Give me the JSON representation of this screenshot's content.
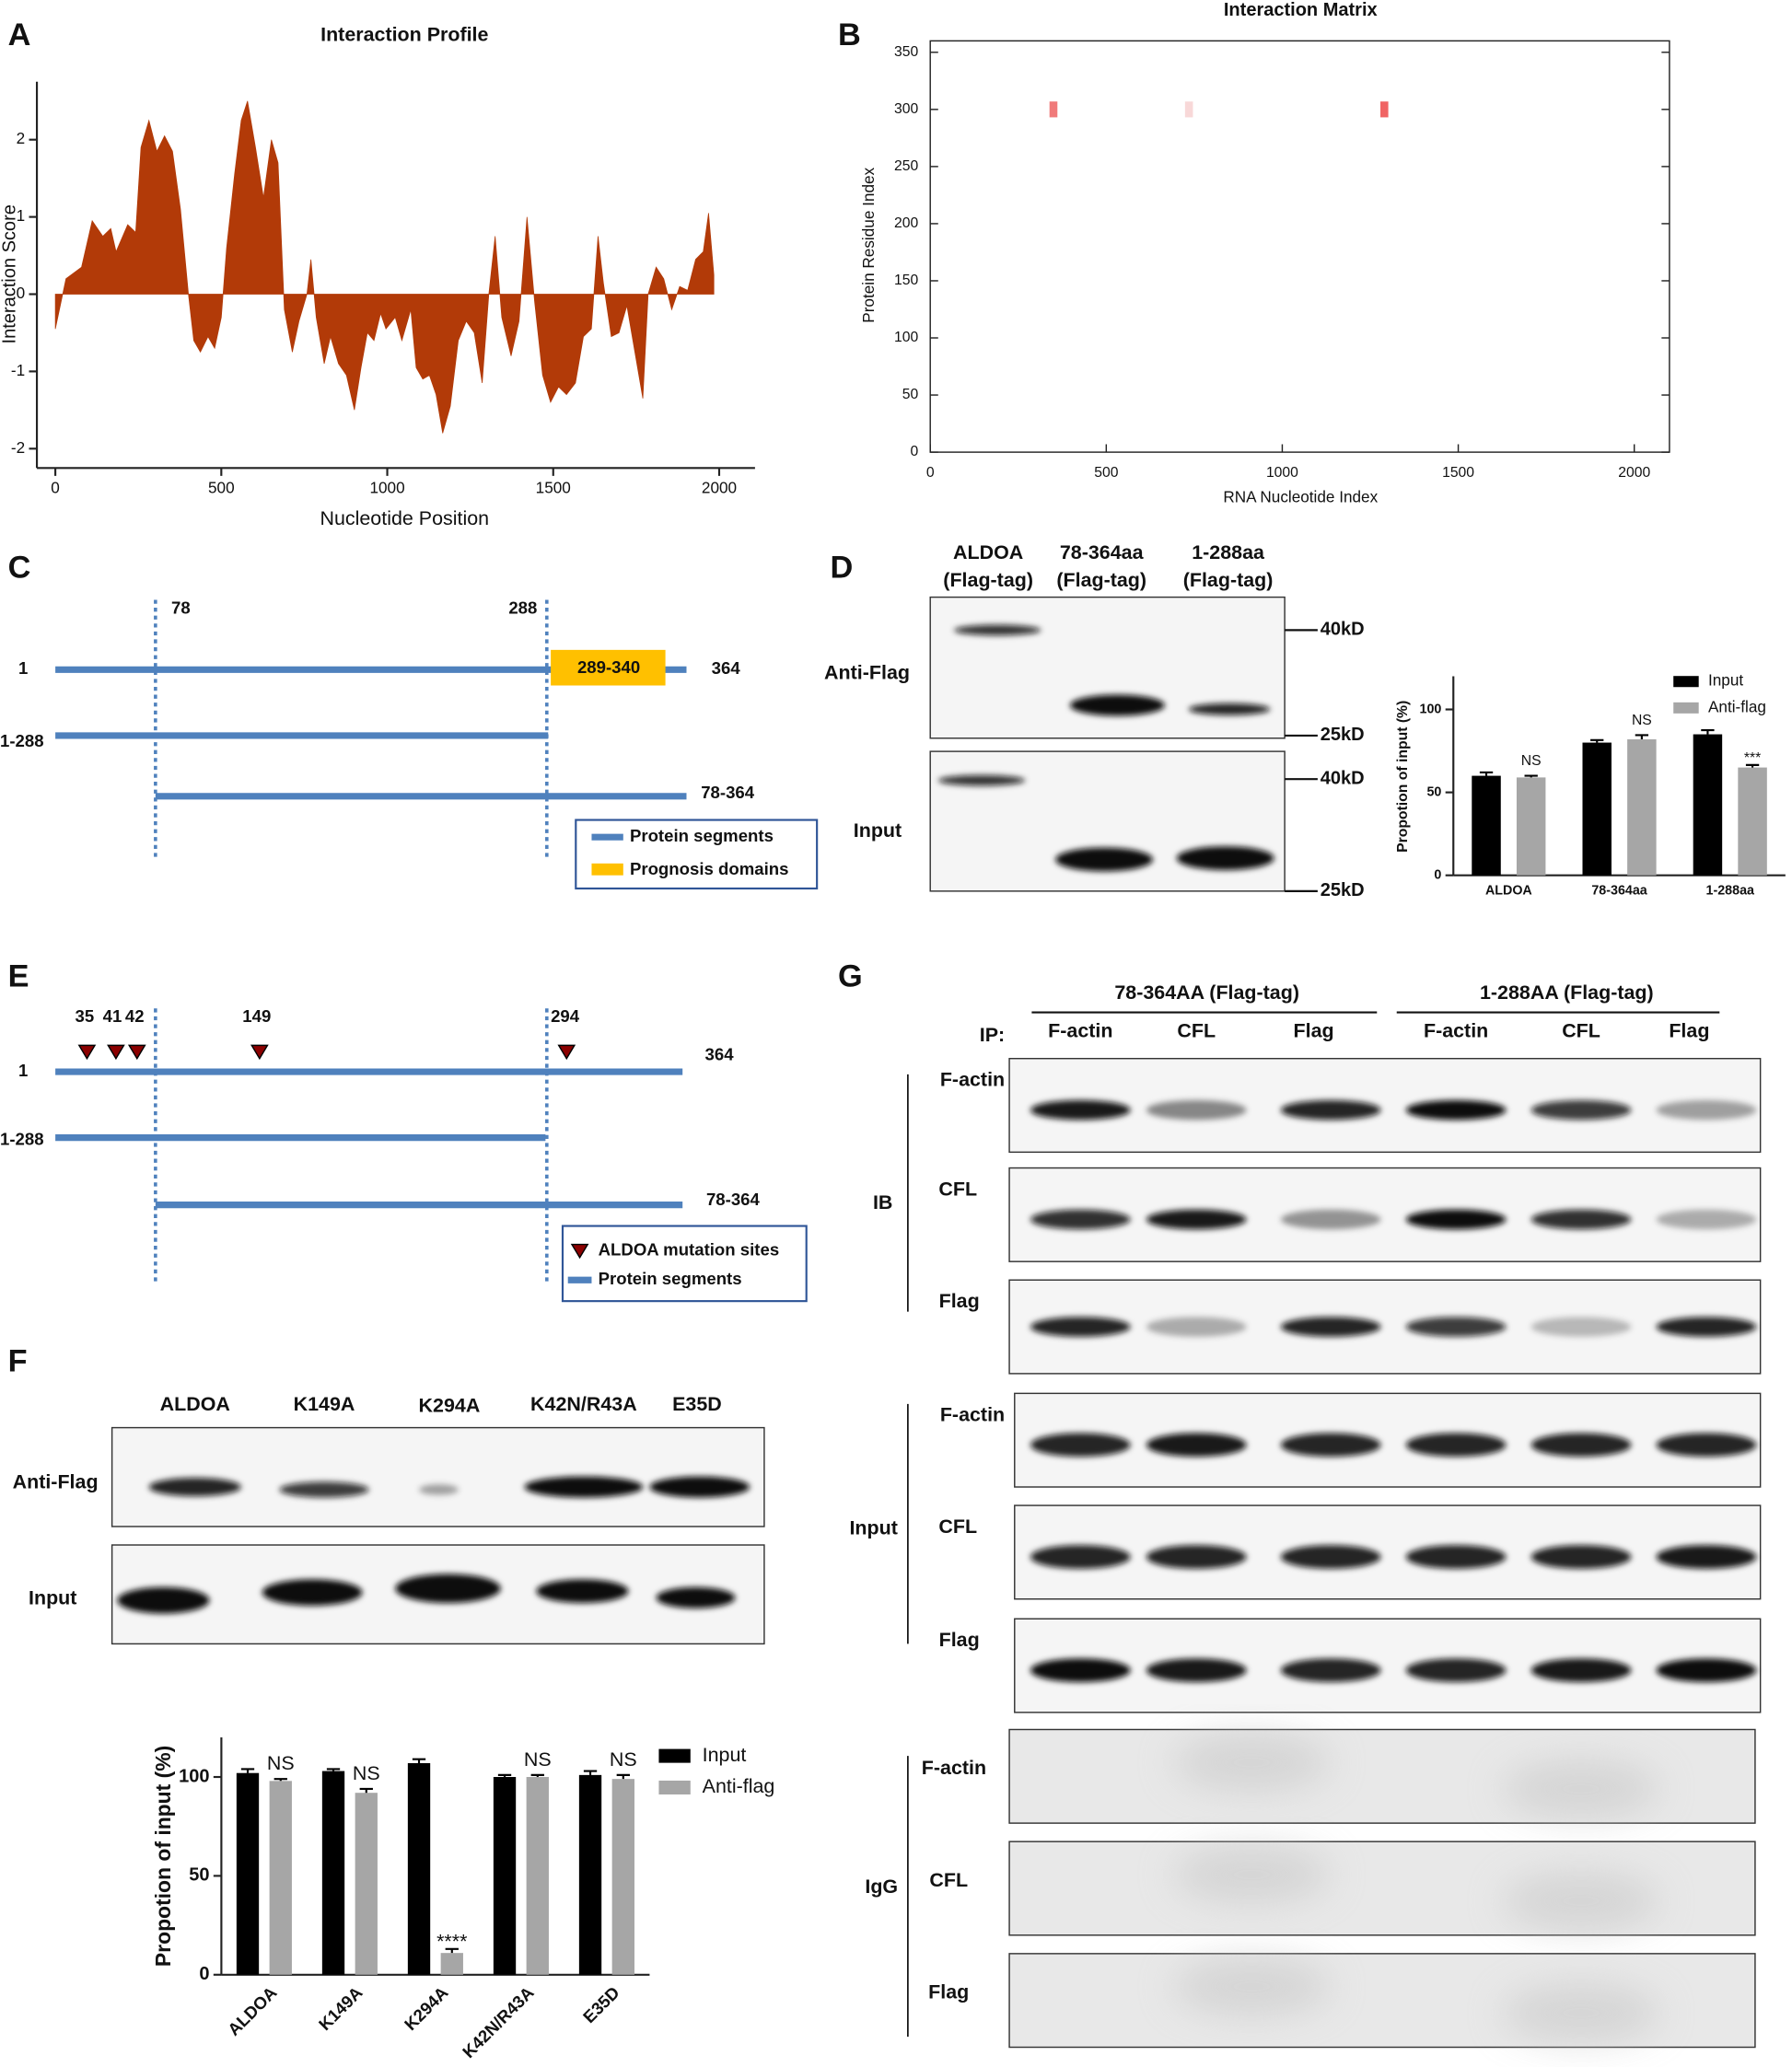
{
  "chart_data": [
    {
      "type": "area",
      "panel_label": "A",
      "title": "Interaction Profile",
      "x_label": "Nucleotide Position",
      "y_label": "Interaction Score",
      "color": "#b23a08",
      "x": [
        0,
        32,
        79,
        111,
        143,
        167,
        183,
        218,
        242,
        258,
        282,
        306,
        329,
        353,
        377,
        401,
        417,
        437,
        460,
        480,
        500,
        516,
        540,
        560,
        579,
        603,
        627,
        651,
        671,
        690,
        714,
        734,
        758,
        770,
        786,
        810,
        829,
        853,
        877,
        901,
        921,
        940,
        960,
        980,
        996,
        1024,
        1044,
        1071,
        1087,
        1107,
        1127,
        1147,
        1167,
        1190,
        1214,
        1238,
        1262,
        1286,
        1306,
        1325,
        1345,
        1373,
        1397,
        1421,
        1444,
        1468,
        1492,
        1516,
        1540,
        1567,
        1591,
        1615,
        1635,
        1651,
        1675,
        1698,
        1722,
        1746,
        1770,
        1786,
        1810,
        1833,
        1857,
        1881,
        1905,
        1929,
        1952,
        1968,
        1984
      ],
      "values": [
        -0.45,
        0.2,
        0.35,
        0.95,
        0.75,
        0.85,
        0.55,
        0.9,
        0.8,
        1.9,
        2.25,
        1.85,
        2.05,
        1.85,
        1.1,
        0,
        -0.6,
        -0.75,
        -0.55,
        -0.7,
        -0.3,
        0.6,
        1.55,
        2.25,
        2.5,
        1.9,
        1.25,
        2,
        1.7,
        -0.2,
        -0.75,
        -0.35,
        0,
        0.45,
        -0.3,
        -0.9,
        -0.55,
        -0.9,
        -1.05,
        -1.5,
        -0.95,
        -0.5,
        -0.6,
        -0.25,
        -0.45,
        -0.3,
        -0.6,
        -0.2,
        -0.95,
        -1.1,
        -1.05,
        -1.3,
        -1.8,
        -1.45,
        -0.6,
        -0.35,
        -0.5,
        -1.15,
        0,
        0.75,
        -0.3,
        -0.8,
        -0.35,
        1,
        -0.1,
        -1.05,
        -1.4,
        -1.2,
        -1.3,
        -1.15,
        -0.55,
        -0.45,
        0.75,
        0.15,
        -0.55,
        -0.5,
        -0.15,
        -0.75,
        -1.35,
        0,
        0.35,
        0.2,
        -0.2,
        0.1,
        0.05,
        0.45,
        0.55,
        1.05,
        0.25
      ],
      "xlim": [
        0,
        2100
      ],
      "xticks": [
        0,
        500,
        1000,
        1500,
        2000
      ],
      "ylim": [
        -2.25,
        2.75
      ],
      "yticks": [
        -2,
        -1,
        0,
        1,
        2
      ]
    },
    {
      "type": "scatter",
      "panel_label": "B",
      "title": "Interaction Matrix",
      "x_label": "RNA Nucleotide Index",
      "y_label": "Protein Residue Index",
      "x": [
        350,
        735,
        1290
      ],
      "values": [
        300,
        300,
        300
      ],
      "colors": [
        "#f07a7a",
        "#f8d8d8",
        "#f06464"
      ],
      "xlim": [
        0,
        2100
      ],
      "xticks": [
        0,
        500,
        1000,
        1500,
        2000
      ],
      "ylim": [
        0,
        360
      ],
      "yticks": [
        0,
        50,
        100,
        150,
        200,
        250,
        300,
        350
      ]
    },
    {
      "type": "bar",
      "y_label": "Propotion of input (%)",
      "categories": [
        "ALDOA",
        "78-364aa",
        "1-288aa"
      ],
      "series": [
        {
          "name": "Input",
          "color": "#000000",
          "values": [
            60,
            80,
            85
          ],
          "errors": [
            2,
            1.5,
            2.5
          ]
        },
        {
          "name": "Anti-flag",
          "color": "#a6a6a6",
          "values": [
            59,
            82,
            65
          ],
          "errors": [
            1,
            2.5,
            1.5
          ]
        }
      ],
      "annotations": [
        "NS",
        "NS",
        "***"
      ],
      "legend": "upper right",
      "ylim": [
        0,
        120
      ],
      "yticks": [
        0,
        50,
        100
      ]
    },
    {
      "type": "bar",
      "y_label": "Propotion of input (%)",
      "categories": [
        "ALDOA",
        "K149A",
        "K294A",
        "K42N/R43A",
        "E35D"
      ],
      "series": [
        {
          "name": "Input",
          "color": "#000000",
          "values": [
            102,
            103,
            107,
            100,
            101
          ],
          "errors": [
            2,
            1,
            2,
            1,
            2
          ]
        },
        {
          "name": "Anti-flag",
          "color": "#a6a6a6",
          "values": [
            98,
            92,
            11,
            100,
            99
          ],
          "errors": [
            1,
            2,
            2,
            1,
            2
          ]
        }
      ],
      "annotations": [
        "NS",
        "NS",
        "****",
        "NS",
        "NS"
      ],
      "legend": "outside right",
      "ylim": [
        0,
        120
      ],
      "yticks": [
        0,
        50,
        100
      ]
    }
  ],
  "diagram_c": {
    "label": "C",
    "markers": [
      "78",
      "288"
    ],
    "rows": [
      {
        "start": "1",
        "end": "364"
      },
      {
        "name": "1-288"
      },
      {
        "name": "78-364"
      }
    ],
    "domain": "289-340",
    "legend": [
      "Protein segments",
      "Prognosis domains"
    ]
  },
  "blot_d": {
    "label": "D",
    "headers": [
      [
        "ALDOA",
        "(Flag-tag)"
      ],
      [
        "78-364aa",
        "(Flag-tag)"
      ],
      [
        "1-288aa",
        "(Flag-tag)"
      ]
    ],
    "rows": [
      "Anti-Flag",
      "Input"
    ],
    "sizes": [
      "40kD",
      "25kD",
      "40kD",
      "25kD"
    ]
  },
  "diagram_e": {
    "label": "E",
    "sites": [
      "35",
      "41",
      "42",
      "149",
      "294"
    ],
    "rows": [
      {
        "start": "1",
        "end": "364"
      },
      {
        "name": "1-288"
      },
      {
        "name": "78-364"
      }
    ],
    "legend": [
      "ALDOA mutation sites",
      "Protein segments"
    ]
  },
  "blot_f": {
    "label": "F",
    "headers": [
      "ALDOA",
      "K149A",
      "K294A",
      "K42N/R43A",
      "E35D"
    ],
    "rows": [
      "Anti-Flag",
      "Input"
    ]
  },
  "blot_g": {
    "label": "G",
    "groups": [
      "78-364AA (Flag-tag)",
      "1-288AA (Flag-tag)"
    ],
    "ip_label": "IP:",
    "lanes": [
      "F-actin",
      "CFL",
      "Flag",
      "F-actin",
      "CFL",
      "Flag"
    ],
    "sections": [
      {
        "label": "IB",
        "rows": [
          "F-actin",
          "CFL",
          "Flag"
        ]
      },
      {
        "label": "Input",
        "rows": [
          "F-actin",
          "CFL",
          "Flag"
        ]
      },
      {
        "label": "IgG",
        "rows": [
          "F-actin",
          "CFL",
          "Flag"
        ]
      }
    ]
  }
}
